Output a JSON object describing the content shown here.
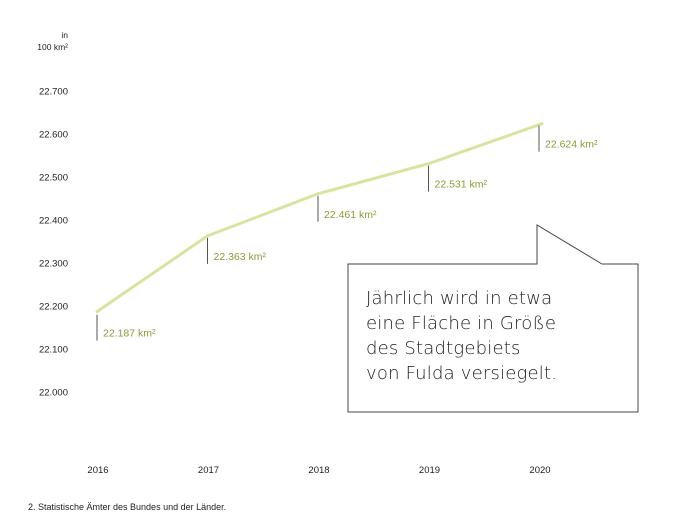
{
  "chart_data": {
    "type": "line",
    "unit_label": [
      "in",
      "100 km²"
    ],
    "x": [
      "2016",
      "2017",
      "2018",
      "2019",
      "2020"
    ],
    "series": [
      {
        "values": [
          22187,
          22363,
          22461,
          22531,
          22624
        ]
      }
    ],
    "data_labels": [
      "22.187 km²",
      "22.363 km²",
      "22.461 km²",
      "22.531 km²",
      "22.624 km²"
    ],
    "y_ticks": [
      "22.000",
      "22.100",
      "22.200",
      "22.300",
      "22.400",
      "22.500",
      "22.600",
      "22.700"
    ],
    "y_tick_values": [
      22000,
      22100,
      22200,
      22300,
      22400,
      22500,
      22600,
      22700
    ],
    "ylim": [
      22000,
      22700
    ],
    "grid": false,
    "line_color": "#d8e3a0",
    "label_color": "#8a9a3a"
  },
  "callout": {
    "lines": [
      "Jährlich wird in etwa",
      "eine Fläche in Größe",
      "des Stadtgebiets",
      "von Fulda versiegelt."
    ]
  },
  "footnote": "2. Statistische Ämter des Bundes und der Länder."
}
